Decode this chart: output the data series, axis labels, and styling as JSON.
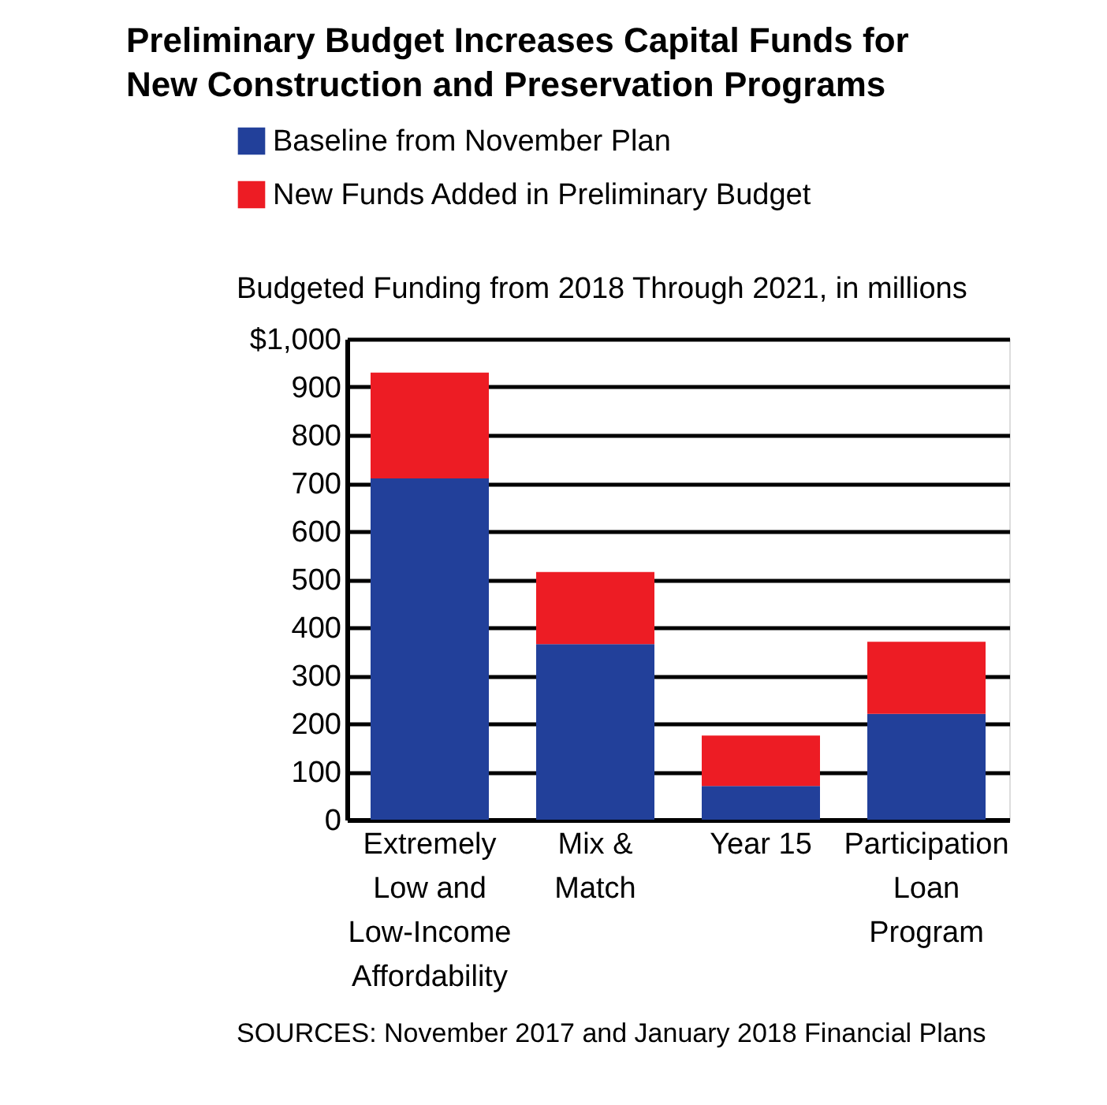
{
  "chart_data": {
    "type": "bar",
    "title": "Preliminary Budget Increases Capital Funds for New Construction and Preservation Programs",
    "subtitle": "Budgeted Funding from 2018 Through 2021, in millions",
    "categories": [
      "Extremely Low and Low-Income Affordability",
      "Mix & Match",
      "Year 15",
      "Participation Loan Program"
    ],
    "series": [
      {
        "name": "Baseline from November Plan",
        "color": "#22409a",
        "values": [
          710,
          365,
          70,
          220
        ]
      },
      {
        "name": "New Funds Added in Preliminary Budget",
        "color": "#ed1c24",
        "values": [
          220,
          150,
          105,
          150
        ]
      }
    ],
    "stacked": true,
    "ylim": [
      0,
      1000
    ],
    "yticks": [
      0,
      100,
      200,
      300,
      400,
      500,
      600,
      700,
      800,
      900,
      {
        "value": 1000,
        "label": "$1,000"
      }
    ],
    "grid": "y",
    "legend": "top left",
    "annotations": [
      "SOURCES: November 2017 and January 2018 Financial Plans"
    ]
  }
}
